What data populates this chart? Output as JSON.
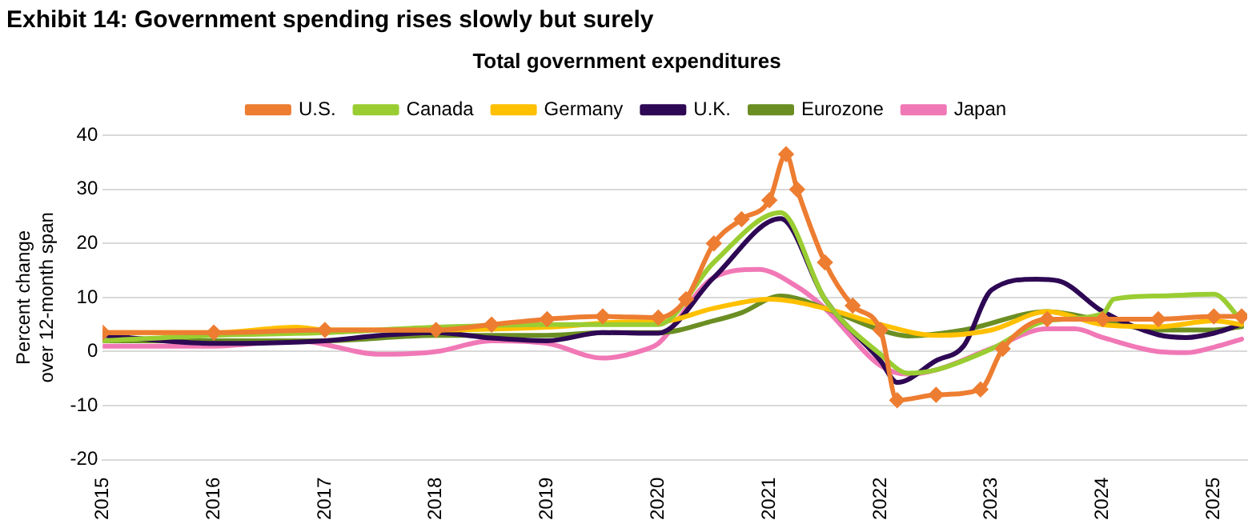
{
  "chart_data": {
    "type": "line",
    "title": "Exhibit 14: Government spending rises slowly but surely",
    "subtitle": "Total government expenditures",
    "ylabel": "Percent change over 12-month span",
    "xlim": [
      2015,
      2025.3
    ],
    "xticks": [
      2015,
      2016,
      2017,
      2018,
      2019,
      2020,
      2021,
      2022,
      2023,
      2024,
      2025
    ],
    "ylim": [
      -20,
      40
    ],
    "yticks": [
      -20,
      -10,
      0,
      10,
      20,
      30,
      40
    ],
    "grid": "y",
    "legend": "top",
    "line_style": "solid",
    "series": [
      {
        "name": "U.S.",
        "color": "#ed7d31",
        "marker": "diamond",
        "x": [
          2015,
          2016,
          2017,
          2018,
          2018.5,
          2019,
          2019.5,
          2020,
          2020.25,
          2020.5,
          2020.75,
          2021,
          2021.15,
          2021.25,
          2021.5,
          2021.75,
          2022,
          2022.15,
          2022.5,
          2022.9,
          2023.1,
          2023.5,
          2024,
          2024.5,
          2025,
          2025.25
        ],
        "values": [
          3.5,
          3.5,
          4,
          4,
          5,
          6,
          6.5,
          6.3,
          9.7,
          20,
          24.5,
          28,
          36.5,
          30,
          16.5,
          8.5,
          4,
          -9,
          -8,
          -7,
          0.5,
          6,
          6,
          6,
          6.5,
          6.5
        ]
      },
      {
        "name": "Canada",
        "color": "#9acd32",
        "marker": "none",
        "x": [
          2015,
          2016,
          2017,
          2018,
          2019,
          2020,
          2020.5,
          2021.1,
          2021.5,
          2022,
          2022.25,
          2022.5,
          2023,
          2023.5,
          2024,
          2024.1,
          2024.5,
          2025,
          2025.25
        ],
        "values": [
          2,
          3,
          3.5,
          4.5,
          5,
          5,
          16.5,
          25.7,
          9.7,
          -0.5,
          -4,
          -3.4,
          0.5,
          5.7,
          7,
          9.7,
          10.3,
          10.6,
          5.7
        ]
      },
      {
        "name": "Germany",
        "color": "#ffc000",
        "marker": "none",
        "x": [
          2015,
          2016,
          2016.75,
          2017,
          2018,
          2019,
          2019.75,
          2020,
          2020.5,
          2021,
          2021.5,
          2022,
          2022.5,
          2023,
          2023.5,
          2024,
          2024.5,
          2025,
          2025.25
        ],
        "values": [
          3.5,
          3.5,
          4.5,
          4,
          4,
          4.5,
          5.5,
          5.5,
          8,
          9.7,
          8,
          5,
          3,
          4,
          7.4,
          5,
          4.6,
          5.7,
          5
        ]
      },
      {
        "name": "U.K.",
        "color": "#2e0854",
        "marker": "none",
        "x": [
          2015,
          2016,
          2017,
          2017.5,
          2018,
          2018.5,
          2019,
          2019.5,
          2020,
          2020.5,
          2021.1,
          2021.5,
          2022,
          2022.15,
          2022.5,
          2022.75,
          2023,
          2023.4,
          2023.6,
          2024,
          2024.5,
          2024.75,
          2025,
          2025.25
        ],
        "values": [
          3,
          1.5,
          2,
          3,
          3.5,
          2.5,
          2,
          3.5,
          3.4,
          13.7,
          24.6,
          9.7,
          -1.7,
          -5.7,
          -1.7,
          1.1,
          11.4,
          13.4,
          13.1,
          7.4,
          3.1,
          2.6,
          3.4,
          5.1
        ]
      },
      {
        "name": "Eurozone",
        "color": "#6b8e23",
        "marker": "none",
        "x": [
          2015,
          2016,
          2017,
          2018,
          2019,
          2019.5,
          2020,
          2020.5,
          2020.75,
          2021.1,
          2021.5,
          2022,
          2022.25,
          2022.75,
          2023.5,
          2024,
          2024.5,
          2025,
          2025.25
        ],
        "values": [
          2,
          2,
          2,
          3,
          3,
          3.5,
          3.5,
          5.7,
          7.2,
          10.3,
          8,
          4,
          2.9,
          4,
          7.4,
          5.7,
          4,
          4,
          4.6
        ]
      },
      {
        "name": "Japan",
        "color": "#f178b6",
        "marker": "none",
        "x": [
          2015,
          2016,
          2016.75,
          2017.5,
          2018,
          2018.5,
          2019,
          2019.5,
          2019.9,
          2020,
          2020.5,
          2020.9,
          2021.25,
          2021.5,
          2022,
          2022.25,
          2022.5,
          2023,
          2023.5,
          2023.75,
          2024,
          2024.5,
          2024.75,
          2025,
          2025.25
        ],
        "values": [
          1,
          1,
          2,
          -0.5,
          0,
          2,
          1.5,
          -1.2,
          0.5,
          1.5,
          13.7,
          15.2,
          12,
          8,
          -2.6,
          -4.2,
          -3.4,
          0.6,
          4.2,
          4.2,
          2.6,
          0,
          -0.2,
          0.8,
          2.3
        ]
      }
    ]
  }
}
